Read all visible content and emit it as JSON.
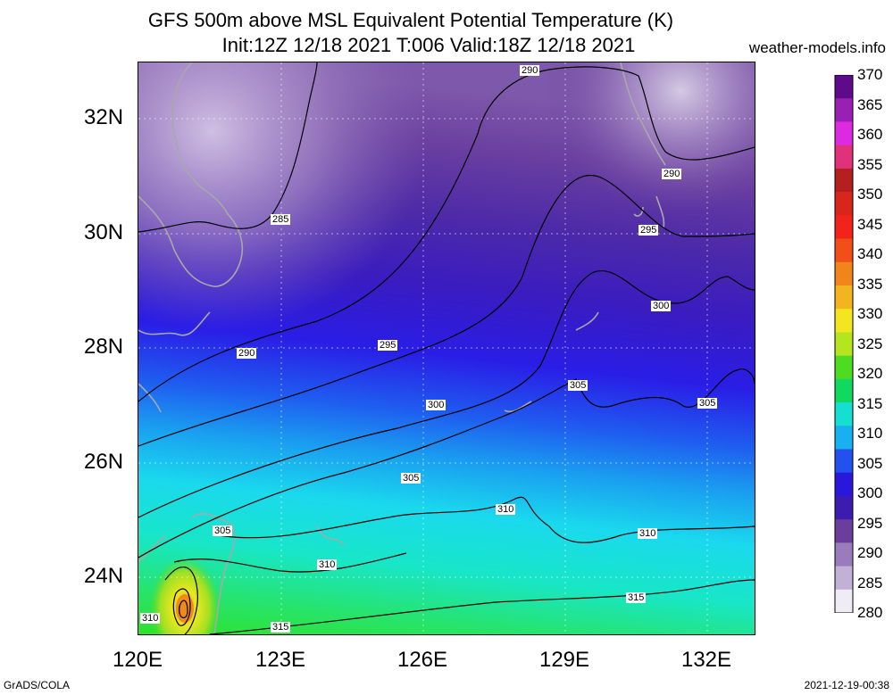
{
  "title": {
    "line1": "GFS 500m above MSL Equivalent Potential Temperature (K)",
    "line2": "Init:12Z 12/18 2021 T:006 Valid:18Z 12/18 2021"
  },
  "credit": "weather-models.info",
  "footer": {
    "left": "GrADS/COLA",
    "right": "2021-12-19-00:38"
  },
  "map": {
    "lat_labels": [
      "32N",
      "30N",
      "28N",
      "26N",
      "24N"
    ],
    "lon_labels": [
      "120E",
      "123E",
      "126E",
      "129E",
      "132E"
    ],
    "contour_labels": [
      "290",
      "285",
      "290",
      "295",
      "290",
      "295",
      "300",
      "300",
      "305",
      "305",
      "305",
      "305",
      "310",
      "310",
      "310",
      "315",
      "315",
      "310"
    ]
  },
  "colorbar": {
    "labels": [
      "370",
      "365",
      "360",
      "355",
      "350",
      "345",
      "340",
      "335",
      "330",
      "325",
      "320",
      "315",
      "310",
      "305",
      "300",
      "295",
      "290",
      "285",
      "280"
    ],
    "colors": [
      "#5e0a8a",
      "#9a1fb4",
      "#dc2ae0",
      "#e0327a",
      "#b3201f",
      "#d8261c",
      "#f2231a",
      "#f24f18",
      "#f2841c",
      "#f2b41f",
      "#f3e620",
      "#b4e51f",
      "#4edc23",
      "#11d85f",
      "#15dfd1",
      "#18b0f0",
      "#2450ee",
      "#2918dc",
      "#3b1cae",
      "#6b3d9c",
      "#9a7bbb",
      "#c2b0d7",
      "#f0ecf6"
    ]
  }
}
